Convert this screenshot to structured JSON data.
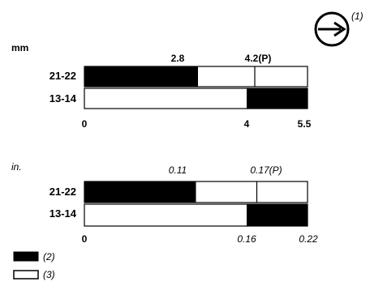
{
  "direction_symbol": {
    "icon": "arrow-right-circle-icon",
    "callout": "(1)"
  },
  "mm_section": {
    "unit": "mm",
    "top_labels": [
      {
        "text": "2.8",
        "value": 2.8
      },
      {
        "text": "4.2(P)",
        "value": 4.2
      }
    ],
    "rows": [
      {
        "label": "21-22",
        "black_from": 0,
        "black_to": 2.8,
        "divider": 4.2
      },
      {
        "label": "13-14",
        "black_from": 4,
        "black_to": 5.5
      }
    ],
    "axis": [
      {
        "text": "0",
        "value": 0
      },
      {
        "text": "4",
        "value": 4
      },
      {
        "text": "5.5",
        "value": 5.5
      }
    ],
    "max": 5.5
  },
  "in_section": {
    "unit": "in.",
    "top_labels": [
      {
        "text": "0.11",
        "value": 0.11
      },
      {
        "text": "0.17(P)",
        "value": 0.17
      }
    ],
    "rows": [
      {
        "label": "21-22",
        "black_from": 0,
        "black_to": 0.11,
        "divider": 0.17
      },
      {
        "label": "13-14",
        "black_from": 0.16,
        "black_to": 0.22
      }
    ],
    "axis": [
      {
        "text": "0",
        "value": 0
      },
      {
        "text": "0.16",
        "value": 0.16
      },
      {
        "text": "0.22",
        "value": 0.22
      }
    ],
    "max": 0.22
  },
  "legend": [
    {
      "fill": "#000000",
      "label": "(2)"
    },
    {
      "fill": "#ffffff",
      "label": "(3)"
    }
  ]
}
